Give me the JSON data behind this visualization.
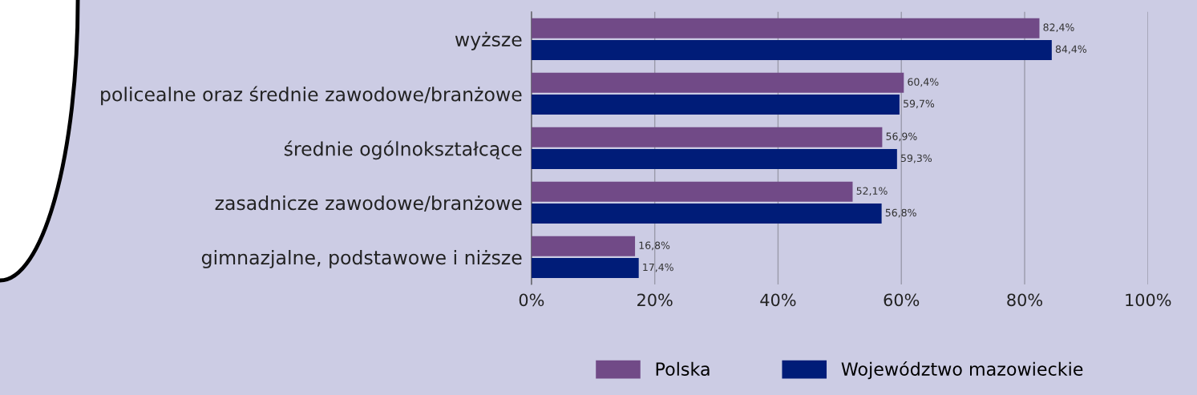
{
  "chart_data": {
    "type": "bar",
    "orientation": "horizontal",
    "categories": [
      "wyższe",
      "policealne oraz średnie zawodowe/branżowe",
      "średnie ogólnokształcące",
      "zasadnicze zawodowe/branżowe",
      "gimnazjalne, podstawowe i niższe"
    ],
    "series": [
      {
        "name": "Polska",
        "color": "#714a87",
        "values": [
          82.4,
          60.4,
          56.9,
          52.1,
          16.8
        ],
        "value_labels": [
          "82,4%",
          "60,4%",
          "56,9%",
          "52,1%",
          "16,8%"
        ]
      },
      {
        "name": "Województwo mazowieckie",
        "color": "#001c78",
        "values": [
          84.4,
          59.7,
          59.3,
          56.8,
          17.4
        ],
        "value_labels": [
          "84,4%",
          "59,7%",
          "59,3%",
          "56,8%",
          "17,4%"
        ]
      }
    ],
    "xlim": [
      0,
      100
    ],
    "xticks": [
      {
        "value": 0,
        "label": "0%"
      },
      {
        "value": 20,
        "label": "20%"
      },
      {
        "value": 40,
        "label": "40%"
      },
      {
        "value": 60,
        "label": "60%"
      },
      {
        "value": 80,
        "label": "80%"
      },
      {
        "value": 100,
        "label": "100%"
      }
    ],
    "grid": "x",
    "legend": "bottom"
  }
}
